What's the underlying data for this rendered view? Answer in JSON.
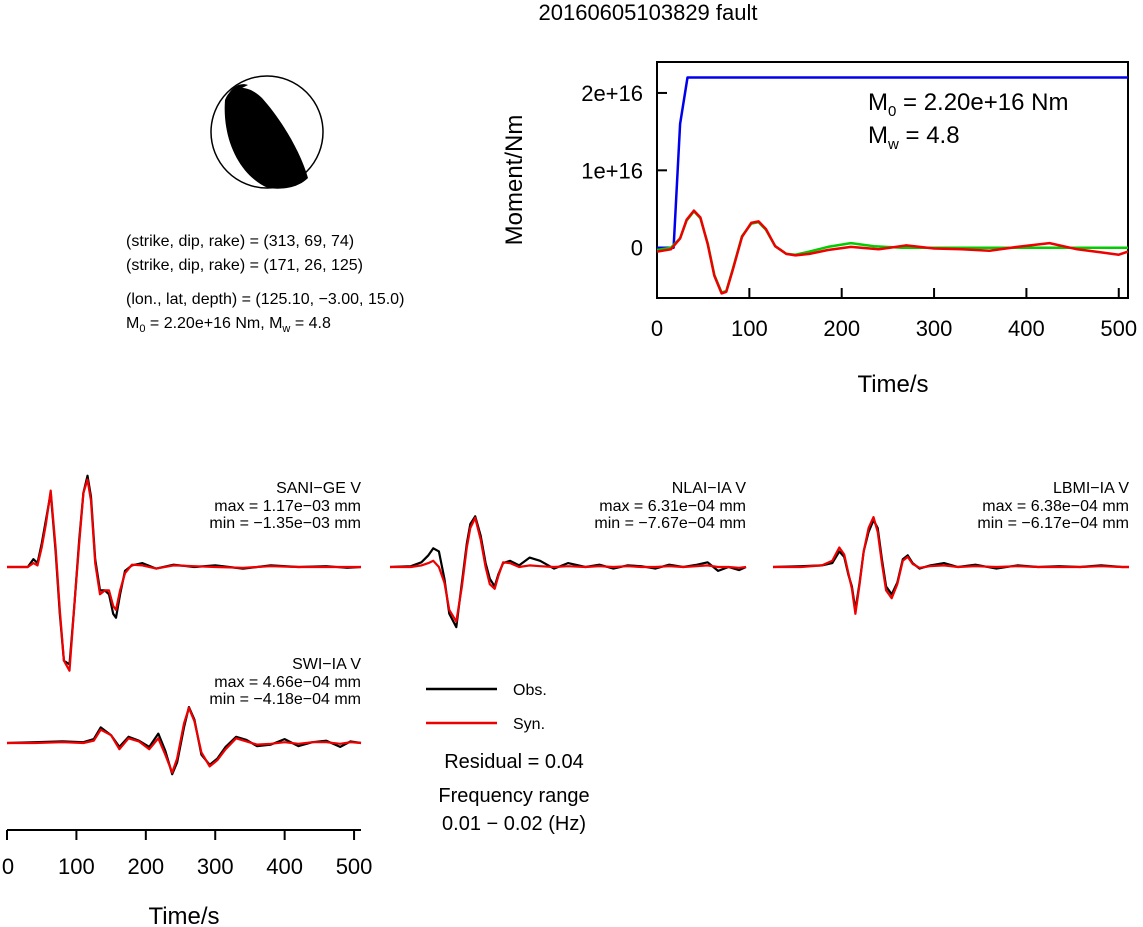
{
  "title": "20160605103829 fault",
  "focal_mechanism": {
    "planes": [
      "(strike, dip, rake) = (313, 69, 74)",
      "(strike, dip, rake) = (171, 26, 125)"
    ],
    "location": "(lon., lat, depth) = (125.10, −3.00, 15.0)",
    "moment_line": {
      "m": "M",
      "m_sub": "0",
      "m_val": " = 2.20e+16 Nm, ",
      "mw": "M",
      "mw_sub": "w",
      "mw_val": " = 4.8"
    }
  },
  "moment_annotation": {
    "m0": {
      "sym": "M",
      "sub": "0",
      "val": " = 2.20e+16 Nm"
    },
    "mw": {
      "sym": "M",
      "sub": "w",
      "val": " = 4.8"
    }
  },
  "chart_data": [
    {
      "type": "line",
      "name": "moment-rate",
      "xlabel": "Time/s",
      "ylabel": "Moment/Nm",
      "xlim": [
        0,
        510
      ],
      "ylim": [
        -6500000000000000.0,
        2.4e+16
      ],
      "x_ticks": [
        "0",
        "100",
        "200",
        "300",
        "400",
        "500"
      ],
      "x_tick_values": [
        0,
        100,
        200,
        300,
        400,
        500
      ],
      "y_ticks": [
        "0",
        "1e+16",
        "2e+16"
      ],
      "y_tick_values": [
        0,
        1e+16,
        2e+16
      ],
      "series": [
        {
          "color": "#0000ee",
          "x": [
            0,
            18,
            25,
            33,
            510
          ],
          "y": [
            0,
            0,
            1.6e+16,
            2.2e+16,
            2.2e+16
          ]
        },
        {
          "color": "#00cc00",
          "x": [
            0,
            15,
            25,
            32,
            40,
            47,
            55,
            62,
            70,
            75,
            82,
            92,
            102,
            110,
            118,
            128,
            140,
            150,
            165,
            185,
            210,
            235,
            265,
            300,
            350,
            420,
            480,
            510
          ],
          "y": [
            -300000000000000.0,
            0,
            1200000000000000.0,
            3500000000000000.0,
            4700000000000000.0,
            3800000000000000.0,
            500000000000000.0,
            -3500000000000000.0,
            -5800000000000000.0,
            -5600000000000000.0,
            -2800000000000000.0,
            1500000000000000.0,
            3100000000000000.0,
            3300000000000000.0,
            2300000000000000.0,
            200000000000000.0,
            -800000000000000.0,
            -900000000000000.0,
            -500000000000000.0,
            100000000000000.0,
            600000000000000.0,
            200000000000000.0,
            0,
            0,
            0,
            0,
            0,
            0
          ]
        },
        {
          "color": "#ee0000",
          "x": [
            0,
            15,
            25,
            32,
            40,
            47,
            55,
            62,
            70,
            75,
            82,
            92,
            102,
            110,
            118,
            128,
            140,
            150,
            165,
            185,
            210,
            240,
            270,
            300,
            330,
            360,
            390,
            425,
            455,
            480,
            500,
            510
          ],
          "y": [
            -500000000000000.0,
            -200000000000000.0,
            1200000000000000.0,
            3600000000000000.0,
            4800000000000000.0,
            3900000000000000.0,
            400000000000000.0,
            -3600000000000000.0,
            -5900000000000000.0,
            -5700000000000000.0,
            -2900000000000000.0,
            1400000000000000.0,
            3200000000000000.0,
            3400000000000000.0,
            2400000000000000.0,
            200000000000000.0,
            -800000000000000.0,
            -1000000000000000.0,
            -800000000000000.0,
            -300000000000000.0,
            100000000000000.0,
            -200000000000000.0,
            300000000000000.0,
            -100000000000000.0,
            -200000000000000.0,
            -400000000000000.0,
            100000000000000.0,
            600000000000000.0,
            -200000000000000.0,
            -600000000000000.0,
            -900000000000000.0,
            -500000000000000.0
          ]
        }
      ]
    },
    {
      "type": "line",
      "name": "waveform-time-axis",
      "xlabel": "Time/s",
      "xlim": [
        0,
        510
      ],
      "x_ticks": [
        "0",
        "100",
        "200",
        "300",
        "400",
        "500"
      ],
      "x_tick_values": [
        0,
        100,
        200,
        300,
        400,
        500
      ]
    }
  ],
  "stations": [
    {
      "name": "SANI−GE V",
      "max": "max = 1.17e−03 mm",
      "min": "min = −1.35e−03 mm",
      "obs": {
        "x": [
          0,
          30,
          38,
          44,
          50,
          56,
          63,
          70,
          76,
          82,
          90,
          97,
          104,
          110,
          116,
          121,
          127,
          134,
          141,
          147,
          153,
          157,
          163,
          170,
          180,
          195,
          215,
          240,
          270,
          300,
          340,
          380,
          420,
          460,
          490,
          510
        ],
        "y": [
          0,
          0,
          0.1,
          0.05,
          0.3,
          0.6,
          0.95,
          0.2,
          -0.6,
          -1.2,
          -1.25,
          -0.5,
          0.35,
          0.95,
          1.17,
          0.9,
          0.1,
          -0.3,
          -0.3,
          -0.35,
          -0.6,
          -0.65,
          -0.35,
          -0.05,
          0.02,
          0.05,
          -0.02,
          0.03,
          0,
          0.02,
          -0.02,
          0.02,
          0,
          0.01,
          -0.01,
          0
        ]
      },
      "syn": {
        "x": [
          0,
          30,
          38,
          44,
          50,
          56,
          63,
          70,
          76,
          82,
          90,
          97,
          104,
          110,
          116,
          121,
          127,
          134,
          141,
          147,
          153,
          157,
          163,
          170,
          180,
          195,
          215,
          240,
          270,
          300,
          340,
          380,
          420,
          460,
          490,
          510
        ],
        "y": [
          0,
          0,
          0.05,
          0.02,
          0.25,
          0.55,
          0.98,
          0.25,
          -0.55,
          -1.2,
          -1.33,
          -0.5,
          0.3,
          0.95,
          1.12,
          0.85,
          0.05,
          -0.35,
          -0.3,
          -0.3,
          -0.5,
          -0.55,
          -0.3,
          -0.08,
          0.03,
          0.02,
          -0.02,
          0.02,
          0.01,
          0,
          -0.01,
          0.01,
          0,
          0,
          0,
          0
        ]
      }
    },
    {
      "name": "NLAI−IA V",
      "max": "max = 6.31e−04 mm",
      "min": "min = −7.67e−04 mm",
      "obs": {
        "x": [
          0,
          30,
          45,
          55,
          62,
          70,
          78,
          85,
          95,
          103,
          110,
          115,
          122,
          130,
          137,
          143,
          150,
          155,
          162,
          172,
          185,
          200,
          215,
          235,
          255,
          280,
          300,
          320,
          340,
          360,
          380,
          400,
          420,
          440,
          455,
          470,
          485,
          500,
          510
        ],
        "y": [
          0,
          0.01,
          0.06,
          0.15,
          0.24,
          0.2,
          -0.15,
          -0.6,
          -0.77,
          -0.2,
          0.3,
          0.55,
          0.65,
          0.4,
          0.05,
          -0.15,
          -0.25,
          -0.1,
          0.05,
          0.08,
          0.02,
          0.12,
          0.08,
          -0.02,
          0.05,
          0,
          0.03,
          -0.02,
          0.02,
          0.01,
          -0.02,
          0.03,
          0,
          0.03,
          0.06,
          -0.05,
          0,
          -0.04,
          0
        ]
      },
      "syn": {
        "x": [
          0,
          30,
          45,
          55,
          62,
          70,
          78,
          85,
          95,
          103,
          110,
          115,
          122,
          130,
          137,
          143,
          150,
          155,
          162,
          172,
          185,
          200,
          215,
          235,
          255,
          280,
          300,
          320,
          340,
          360,
          380,
          400,
          420,
          440,
          455,
          470,
          485,
          500,
          510
        ],
        "y": [
          0,
          0,
          0.02,
          0.05,
          0.08,
          0.0,
          -0.2,
          -0.55,
          -0.7,
          -0.25,
          0.25,
          0.5,
          0.63,
          0.35,
          0.0,
          -0.22,
          -0.28,
          -0.12,
          0.06,
          0.05,
          0.0,
          0.02,
          0.01,
          0,
          0.01,
          0,
          0.01,
          0,
          0.01,
          0,
          0,
          0.01,
          0,
          0.01,
          0.02,
          0,
          0,
          -0.01,
          0
        ]
      }
    },
    {
      "name": "LBMI−IA V",
      "max": "max = 6.38e−04 mm",
      "min": "min = −6.17e−04 mm",
      "obs": {
        "x": [
          0,
          40,
          70,
          85,
          95,
          102,
          108,
          113,
          118,
          124,
          130,
          137,
          144,
          150,
          156,
          162,
          170,
          178,
          186,
          193,
          200,
          210,
          225,
          245,
          265,
          290,
          320,
          350,
          380,
          410,
          440,
          470,
          500,
          510
        ],
        "y": [
          0,
          0.01,
          0.02,
          0.05,
          0.2,
          0.13,
          -0.1,
          -0.25,
          -0.55,
          -0.2,
          0.2,
          0.45,
          0.6,
          0.5,
          0.1,
          -0.25,
          -0.35,
          -0.2,
          0.1,
          0.15,
          0.05,
          -0.02,
          0.02,
          0.05,
          0,
          0.03,
          -0.02,
          0.02,
          0,
          0.01,
          0,
          0.02,
          0,
          0
        ]
      },
      "syn": {
        "x": [
          0,
          40,
          70,
          85,
          95,
          102,
          108,
          113,
          118,
          124,
          130,
          137,
          144,
          150,
          156,
          162,
          170,
          178,
          186,
          193,
          200,
          210,
          225,
          245,
          265,
          290,
          320,
          350,
          380,
          410,
          440,
          470,
          500,
          510
        ],
        "y": [
          0,
          0,
          0.02,
          0.08,
          0.25,
          0.16,
          -0.08,
          -0.28,
          -0.6,
          -0.22,
          0.2,
          0.5,
          0.64,
          0.45,
          0.05,
          -0.3,
          -0.4,
          -0.22,
          0.08,
          0.13,
          0.04,
          -0.01,
          0.01,
          0.02,
          0,
          0.01,
          0,
          0.01,
          0,
          0,
          0,
          0.01,
          0,
          0
        ]
      }
    },
    {
      "name": "SWI−IA V",
      "max": "max = 4.66e−04 mm",
      "min": "min = −4.18e−04 mm",
      "obs": {
        "x": [
          0,
          40,
          80,
          110,
          125,
          135,
          150,
          162,
          175,
          190,
          205,
          218,
          228,
          238,
          245,
          255,
          262,
          270,
          280,
          292,
          303,
          315,
          330,
          345,
          360,
          380,
          400,
          420,
          440,
          460,
          480,
          495,
          510
        ],
        "y": [
          0,
          0.01,
          0.02,
          0.01,
          0.05,
          0.2,
          0.1,
          -0.05,
          0.08,
          0.03,
          -0.05,
          0.12,
          -0.1,
          -0.4,
          -0.25,
          0.2,
          0.46,
          0.3,
          -0.15,
          -0.28,
          -0.2,
          -0.05,
          0.08,
          0.04,
          -0.04,
          -0.02,
          0.05,
          -0.04,
          0.01,
          0.03,
          -0.05,
          0.02,
          0
        ]
      },
      "syn": {
        "x": [
          0,
          40,
          80,
          110,
          125,
          135,
          150,
          162,
          175,
          190,
          205,
          218,
          228,
          238,
          245,
          255,
          262,
          270,
          280,
          292,
          303,
          315,
          330,
          345,
          360,
          380,
          400,
          420,
          440,
          460,
          480,
          495,
          510
        ],
        "y": [
          0,
          0,
          0.01,
          0,
          0.03,
          0.17,
          0.1,
          -0.08,
          0.06,
          0.02,
          -0.08,
          0.06,
          -0.15,
          -0.38,
          -0.2,
          0.25,
          0.45,
          0.28,
          -0.12,
          -0.3,
          -0.22,
          -0.08,
          0.06,
          0.02,
          -0.02,
          -0.01,
          0.01,
          -0.01,
          0.01,
          0.01,
          -0.01,
          0.01,
          0
        ]
      }
    }
  ],
  "legend": {
    "obs": "Obs.",
    "syn": "Syn.",
    "obs_color": "#000000",
    "syn_color": "#ee0000"
  },
  "residual": "Residual = 0.04",
  "freq_label": "Frequency range",
  "freq_value": "0.01 − 0.02 (Hz)",
  "colors": {
    "obs": "#000000",
    "syn": "#ee0000",
    "moment": "#0000ee",
    "moment_green": "#00cc00"
  }
}
